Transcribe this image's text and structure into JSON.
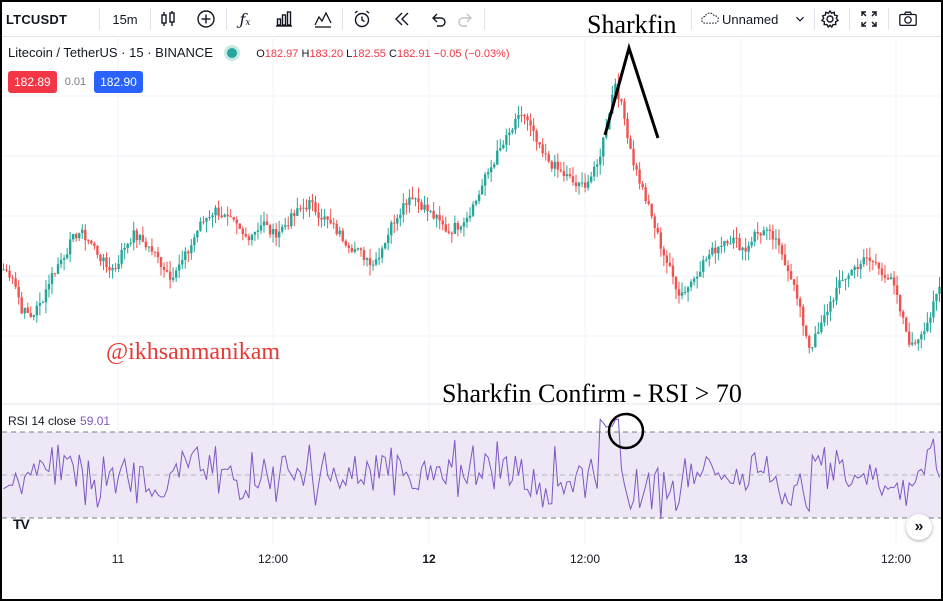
{
  "toolbar": {
    "symbol": "LTCUSDT",
    "interval": "15m",
    "layout_name": "Unnamed",
    "icons": [
      "candles-icon",
      "add-compare-icon",
      "indicators-icon",
      "bar-chart-icon",
      "templates-icon",
      "alert-icon",
      "replay-icon",
      "undo-icon",
      "redo-icon",
      "cloud-icon",
      "settings-icon",
      "fullscreen-icon",
      "snapshot-icon"
    ]
  },
  "legend": {
    "title": "Litecoin / TetherUS · 15 · BINANCE",
    "o_label": "O",
    "o": "182.97",
    "h_label": "H",
    "h": "183.20",
    "l_label": "L",
    "l": "182.55",
    "c_label": "C",
    "c": "182.91",
    "change": "−0.05 (−0.03%)"
  },
  "quote": {
    "bid": "182.89",
    "spread": "0.01",
    "ask": "182.90"
  },
  "rsi": {
    "label": "RSI 14 close",
    "value": "59.01"
  },
  "annotations": {
    "sharkfin": "Sharkfin",
    "confirm": "Sharkfin Confirm - RSI > 70",
    "watermark": "@ikhsanmanikam"
  },
  "time_axis": [
    "11",
    "12:00",
    "12",
    "12:00",
    "13",
    "12:00"
  ],
  "colors": {
    "up": "#26a69a",
    "down": "#ef5350",
    "rsi_line": "#7e57c2",
    "rsi_band": "#ede7f6",
    "bid": "#f23645",
    "ask": "#2962ff"
  },
  "chart_data": {
    "type": "candlestick",
    "description_note": "",
    "price_series_close": [
      181.4,
      181.2,
      180.1,
      179.9,
      180.3,
      181.1,
      181.6,
      182.1,
      182.6,
      182.4,
      182.0,
      181.5,
      181.4,
      182.1,
      182.5,
      182.3,
      182.0,
      181.6,
      181.2,
      181.5,
      182.0,
      182.7,
      183.1,
      183.3,
      183.0,
      182.8,
      182.4,
      182.6,
      182.9,
      182.5,
      182.7,
      183.0,
      183.3,
      183.5,
      183.2,
      182.9,
      182.6,
      182.3,
      182.0,
      181.8,
      181.6,
      182.2,
      182.9,
      183.4,
      183.8,
      183.5,
      183.2,
      182.9,
      182.6,
      182.8,
      183.1,
      183.6,
      184.3,
      184.9,
      185.4,
      185.9,
      186.4,
      185.8,
      185.1,
      184.8,
      184.5,
      184.3,
      184.0,
      184.2,
      184.6,
      185.9,
      187.4,
      186.2,
      184.8,
      183.9,
      183.0,
      182.1,
      181.3,
      180.6,
      180.9,
      181.4,
      181.8,
      182.1,
      182.4,
      182.3,
      182.0,
      182.5,
      182.6,
      182.4,
      181.9,
      181.2,
      180.0,
      178.9,
      179.4,
      180.2,
      180.8,
      181.2,
      181.5,
      181.7,
      181.6,
      181.3,
      180.9,
      179.8,
      178.9,
      179.4,
      179.9,
      180.8
    ]
  }
}
